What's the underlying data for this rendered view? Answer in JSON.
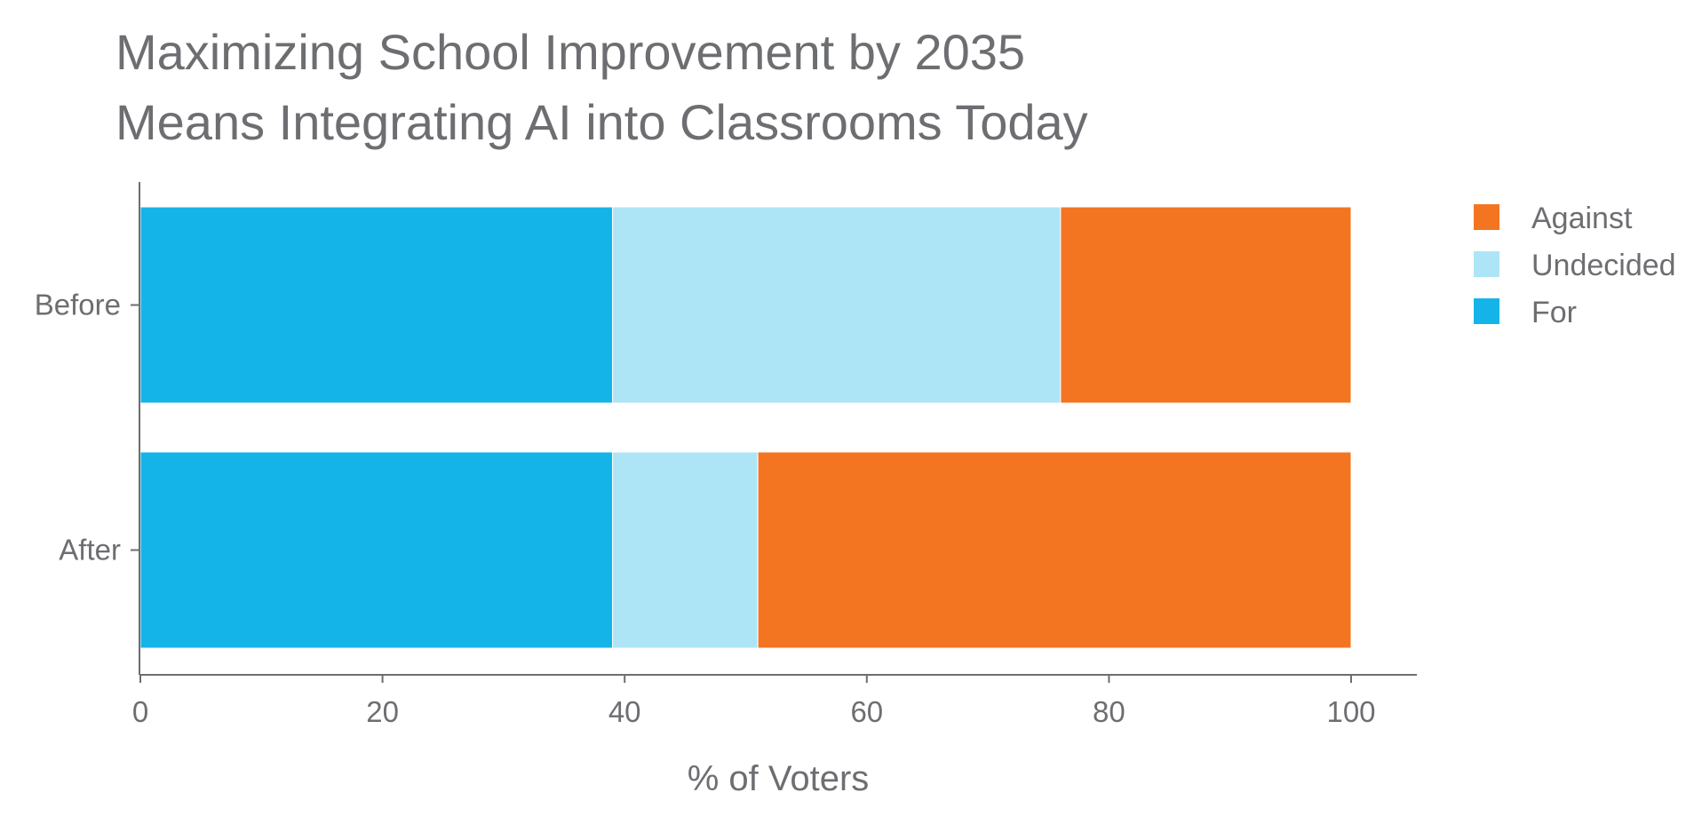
{
  "chart_data": {
    "type": "bar",
    "orientation": "horizontal",
    "stacked": true,
    "title_lines": [
      "Maximizing School Improvement by 2035",
      "Means Integrating AI into Classrooms Today"
    ],
    "categories": [
      "Before",
      "After"
    ],
    "series": [
      {
        "name": "For",
        "color": "#15b4e8",
        "values": [
          39,
          39
        ]
      },
      {
        "name": "Undecided",
        "color": "#ade5f7",
        "values": [
          37,
          12
        ]
      },
      {
        "name": "Against",
        "color": "#f37522",
        "values": [
          24,
          49
        ]
      }
    ],
    "legend_order": [
      "Against",
      "Undecided",
      "For"
    ],
    "legend_position": "top-right",
    "xlabel": "% of Voters",
    "ylabel": "",
    "xlim": [
      0,
      105
    ],
    "xticks": [
      0,
      20,
      40,
      60,
      80,
      100
    ],
    "grid": false
  }
}
